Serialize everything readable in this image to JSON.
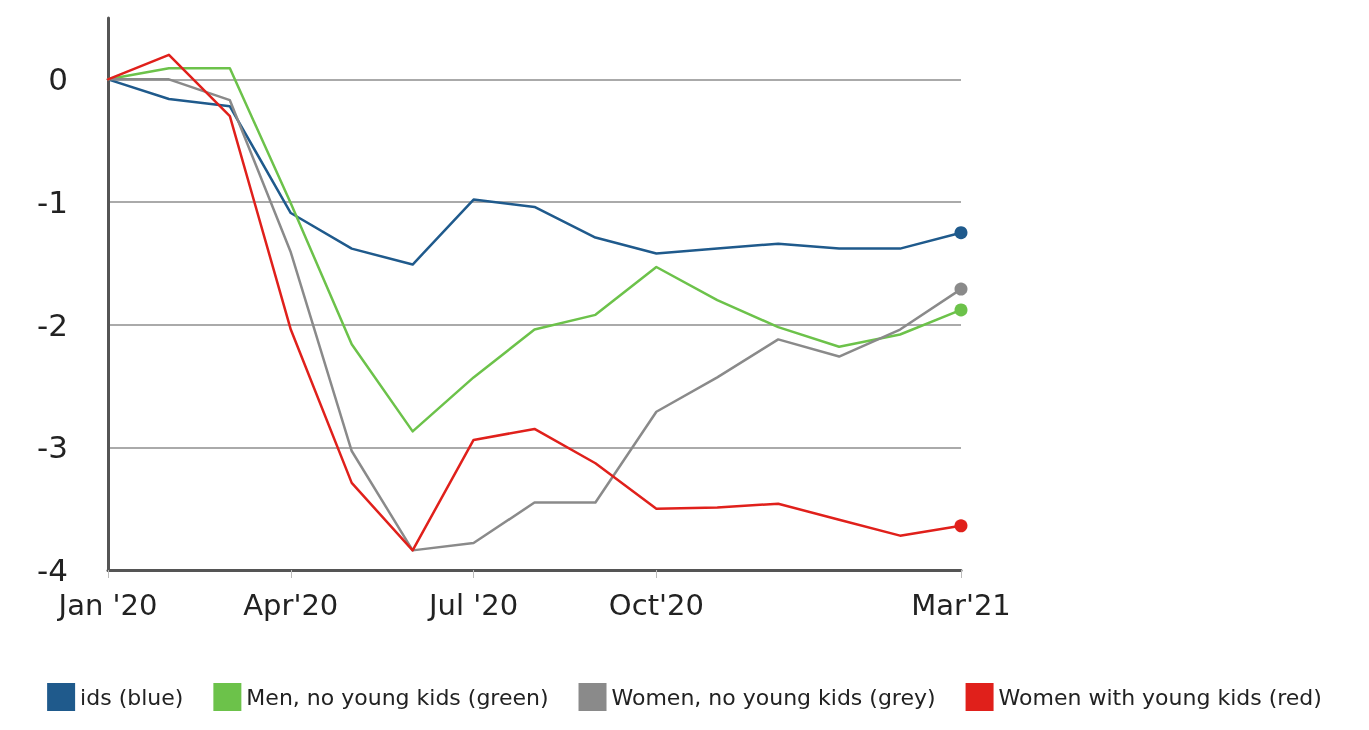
{
  "chart_data": {
    "type": "line",
    "categories": [
      "Jan '20",
      null,
      null,
      "Apr'20",
      null,
      null,
      "Jul '20",
      null,
      null,
      "Oct'20",
      null,
      null,
      null,
      null,
      "Mar'21"
    ],
    "series": [
      {
        "name": "ids (blue)",
        "color": "#1f5a8c",
        "values": [
          0,
          -0.16,
          -0.22,
          -1.09,
          -1.38,
          -1.51,
          -0.98,
          -1.04,
          -1.29,
          -1.42,
          -1.38,
          -1.34,
          -1.38,
          -1.38,
          -1.25
        ]
      },
      {
        "name": "Men, no young kids (green)",
        "color": "#6cc24a",
        "values": [
          0,
          0.09,
          0.09,
          -1.01,
          -2.16,
          -2.87,
          -2.43,
          -2.04,
          -1.92,
          -1.53,
          -1.8,
          -2.02,
          -2.18,
          -2.08,
          -1.88
        ]
      },
      {
        "name": "Women, no young kids (grey)",
        "color": "#8a8a8a",
        "values": [
          0,
          0,
          -0.17,
          -1.41,
          -3.03,
          -3.84,
          -3.78,
          -3.45,
          -3.45,
          -2.71,
          -2.43,
          -2.12,
          -2.26,
          -2.04,
          -1.71
        ]
      },
      {
        "name": "Women with young kids (red)",
        "color": "#e0201b",
        "values": [
          0,
          0.2,
          -0.3,
          -2.04,
          -3.29,
          -3.84,
          -2.94,
          -2.85,
          -3.13,
          -3.5,
          -3.49,
          -3.46,
          -3.59,
          -3.72,
          -3.64
        ]
      }
    ],
    "ylim": [
      -4,
      0.5
    ],
    "yticks": [
      0,
      -1,
      -2,
      -3,
      -4
    ],
    "grid": "y",
    "legend": "bottom",
    "line_style": "solid"
  }
}
